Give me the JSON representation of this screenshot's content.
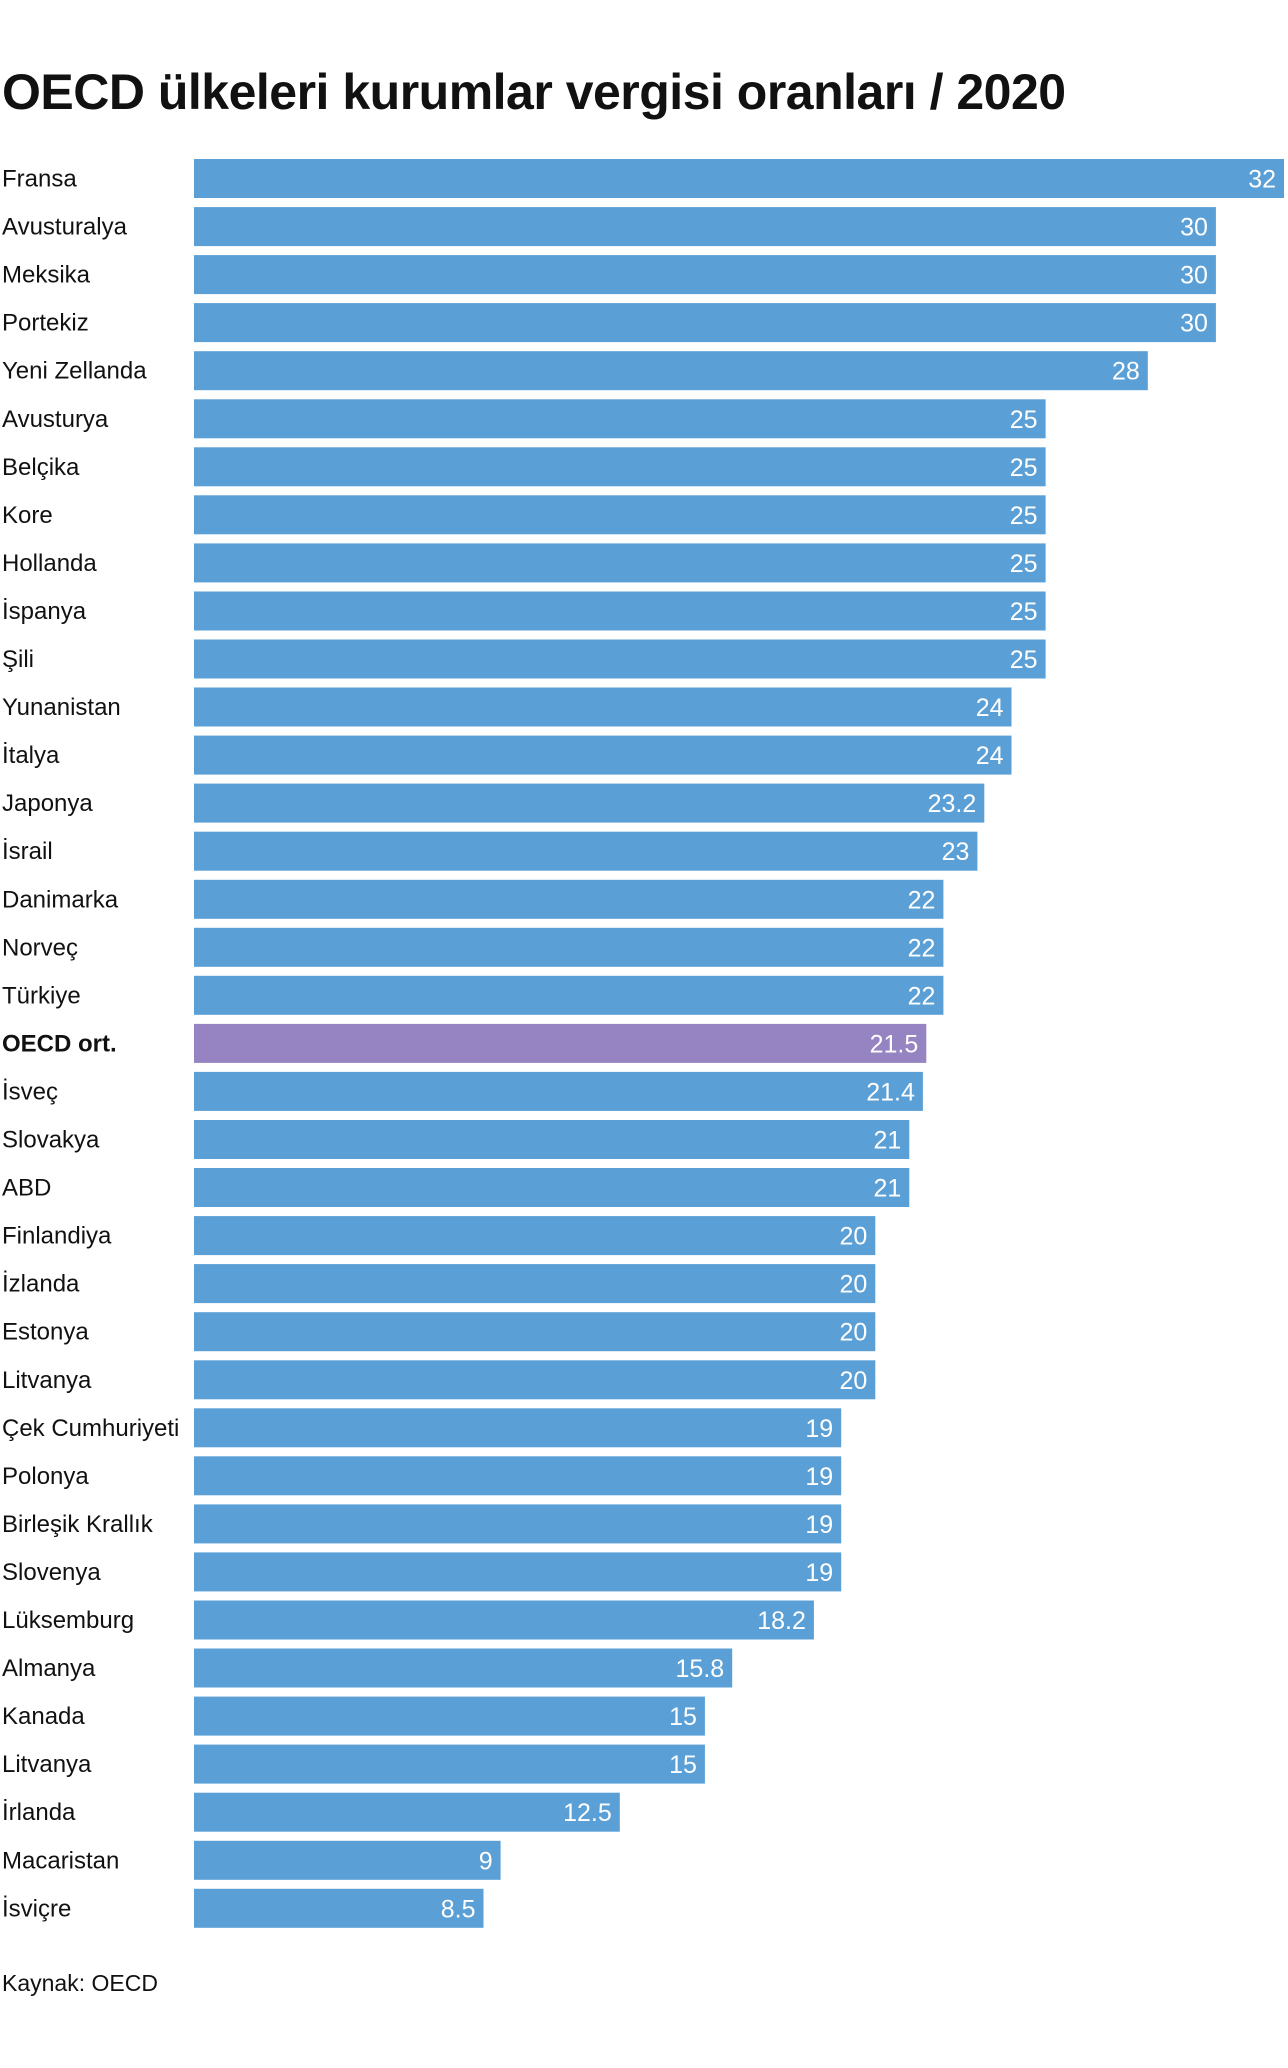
{
  "title": "OECD ülkeleri kurumlar vergisi oranları / 2020",
  "source": "Kaynak: OECD",
  "colors": {
    "bar": "#5a9fd5",
    "highlight_bar": "#9683c2",
    "value_text": "#ffffff",
    "label_text": "#111111"
  },
  "chart_data": {
    "type": "bar",
    "orientation": "horizontal",
    "title": "OECD ülkeleri kurumlar vergisi oranları / 2020",
    "xlim": [
      0,
      32
    ],
    "grid": false,
    "highlight_category": "OECD ort.",
    "categories": [
      "Fransa",
      "Avusturalya",
      "Meksika",
      "Portekiz",
      "Yeni Zellanda",
      "Avusturya",
      "Belçika",
      "Kore",
      "Hollanda",
      "İspanya",
      "Şili",
      "Yunanistan",
      "İtalya",
      "Japonya",
      "İsrail",
      "Danimarka",
      "Norveç",
      "Türkiye",
      "OECD ort.",
      "İsveç",
      "Slovakya",
      "ABD",
      "Finlandiya",
      "İzlanda",
      "Estonya",
      "Litvanya",
      "Çek Cumhuriyeti",
      "Polonya",
      "Birleşik Krallık",
      "Slovenya",
      "Lüksemburg",
      "Almanya",
      "Kanada",
      "Litvanya",
      "İrlanda",
      "Macaristan",
      "İsviçre"
    ],
    "values": [
      32,
      30,
      30,
      30,
      28,
      25,
      25,
      25,
      25,
      25,
      25,
      24,
      24,
      23.2,
      23,
      22,
      22,
      22,
      21.5,
      21.4,
      21,
      21,
      20,
      20,
      20,
      20,
      19,
      19,
      19,
      19,
      18.2,
      15.8,
      15,
      15,
      12.5,
      9,
      8.5
    ]
  }
}
